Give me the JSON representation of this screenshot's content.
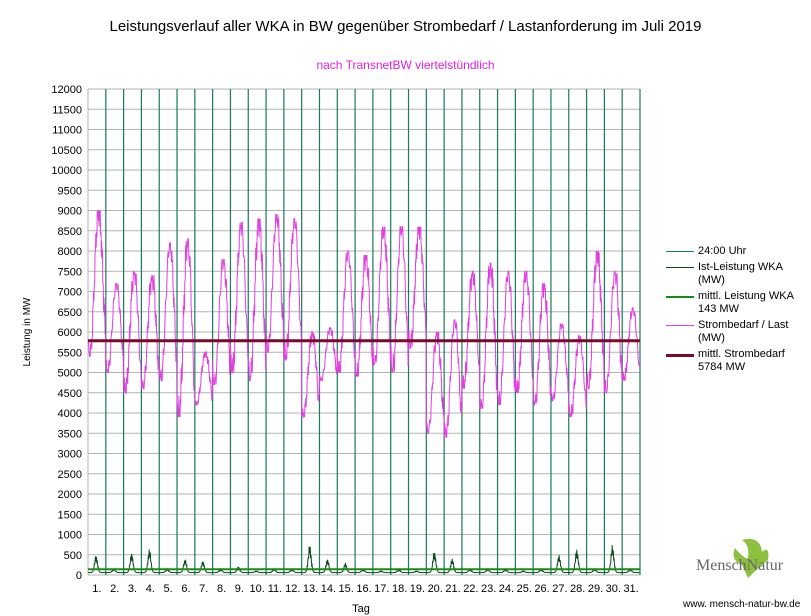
{
  "chart_data": {
    "type": "line",
    "title": "Leistungsverlauf aller WKA in BW gegenüber  Strombedarf / Lastanforderung im Juli 2019",
    "subtitle": "nach TransnetBW viertelstündlich",
    "xlabel": "Tag",
    "ylabel": "Leistung in MW",
    "ylim": [
      0,
      12000
    ],
    "ytick_step": 500,
    "x_ticks": [
      "1.",
      "2.",
      "3.",
      "4.",
      "5.",
      "6.",
      "7.",
      "8.",
      "9.",
      "10.",
      "11.",
      "12.",
      "13.",
      "14.",
      "15.",
      "16.",
      "17.",
      "18.",
      "19.",
      "20.",
      "21.",
      "22.",
      "23.",
      "24.",
      "25.",
      "26.",
      "27.",
      "28.",
      "29.",
      "30.",
      "31."
    ],
    "legend": [
      {
        "label": "24:00 Uhr",
        "color": "#1a7a5a"
      },
      {
        "label": "Ist-Leistung WKA\n(MW)",
        "color": "#0a4a1a"
      },
      {
        "label": "mittl. Leistung WKA\n143 MW",
        "color": "#1a8a1a"
      },
      {
        "label": "Strombedarf / Last\n(MW)",
        "color": "#e040e0"
      },
      {
        "label": "mittl. Strombedarf\n5784 MW",
        "color": "#7a0a2a"
      }
    ],
    "legend_position": "right",
    "series": [
      {
        "name": "Strombedarf / Last (MW)",
        "daily_max": [
          9000,
          7200,
          7500,
          7400,
          8200,
          8300,
          5500,
          7800,
          8700,
          8800,
          8900,
          8800,
          6000,
          6100,
          8000,
          7900,
          8600,
          8600,
          8600,
          6000,
          6300,
          7500,
          7700,
          7500,
          7500,
          7200,
          6200,
          5900,
          8000,
          7500,
          6600
        ],
        "daily_min": [
          5400,
          5000,
          4500,
          4600,
          4800,
          3900,
          4200,
          4700,
          5000,
          4800,
          5500,
          5300,
          3900,
          4800,
          5000,
          4900,
          5200,
          5000,
          5600,
          3500,
          3400,
          4600,
          4100,
          4200,
          4500,
          4200,
          4300,
          3900,
          4600,
          4500,
          4800
        ]
      },
      {
        "name": "Ist-Leistung WKA (MW)",
        "daily_max": [
          500,
          150,
          550,
          650,
          150,
          400,
          350,
          150,
          200,
          100,
          150,
          150,
          750,
          400,
          300,
          150,
          100,
          150,
          100,
          600,
          400,
          150,
          150,
          150,
          100,
          150,
          500,
          650,
          150,
          750,
          150
        ]
      },
      {
        "name": "mittl. Leistung WKA",
        "value": 143
      },
      {
        "name": "mittl. Strombedarf",
        "value": 5784
      }
    ]
  },
  "branding": {
    "logo": "MenschNatur",
    "url": "www. mensch-natur-bw.de"
  }
}
